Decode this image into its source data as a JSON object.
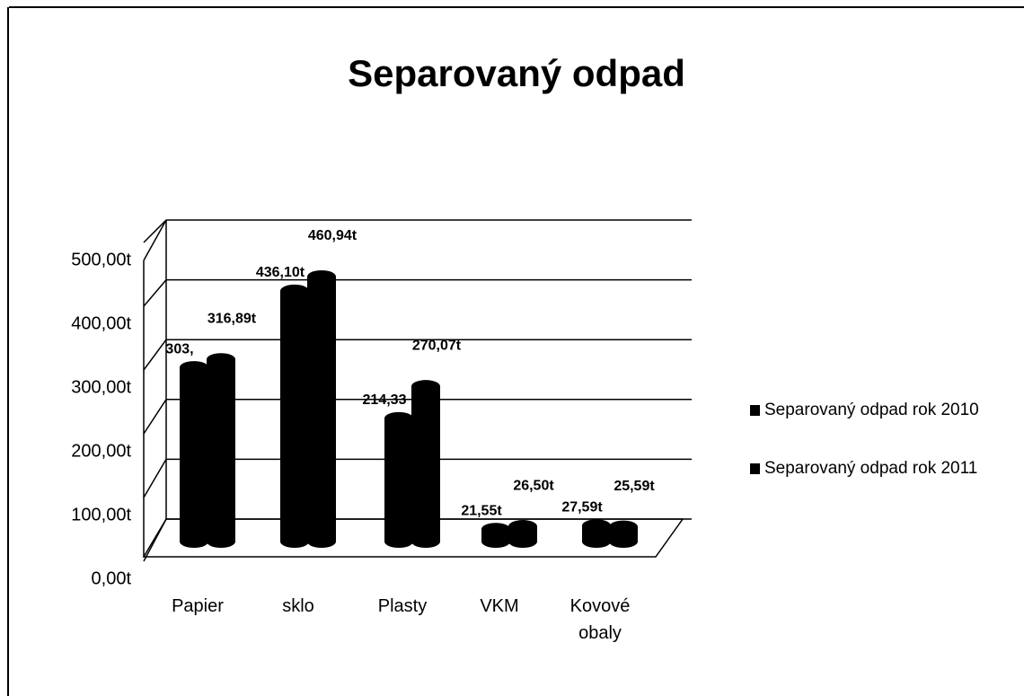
{
  "chart_data": {
    "type": "bar3d",
    "title": "Separovaný odpad",
    "categories": [
      "Papier",
      "sklo",
      "Plasty",
      "VKM",
      "Kovové obaly"
    ],
    "series": [
      {
        "name": "Separovaný odpad rok 2010",
        "color": "#000000",
        "values": [
          303,
          436.1,
          214.33,
          21.55,
          27.59
        ],
        "value_labels": [
          "303,",
          "436,10t",
          "214,33",
          "21,55t",
          "27,59t"
        ]
      },
      {
        "name": "Separovaný odpad rok 2011",
        "color": "#000000",
        "values": [
          316.89,
          460.94,
          270.07,
          26.5,
          25.59
        ],
        "value_labels": [
          "316,89t",
          "460,94t",
          "270,07t",
          "26,50t",
          "25,59t"
        ]
      }
    ],
    "ylim": [
      0,
      500
    ],
    "yticks": [
      {
        "value": 0,
        "label": "0,00t"
      },
      {
        "value": 100,
        "label": "100,00t"
      },
      {
        "value": 200,
        "label": "200,00t"
      },
      {
        "value": 300,
        "label": "300,00t"
      },
      {
        "value": 400,
        "label": "400,00t"
      },
      {
        "value": 500,
        "label": "500,00t"
      }
    ],
    "grid": true,
    "legend": "right"
  }
}
